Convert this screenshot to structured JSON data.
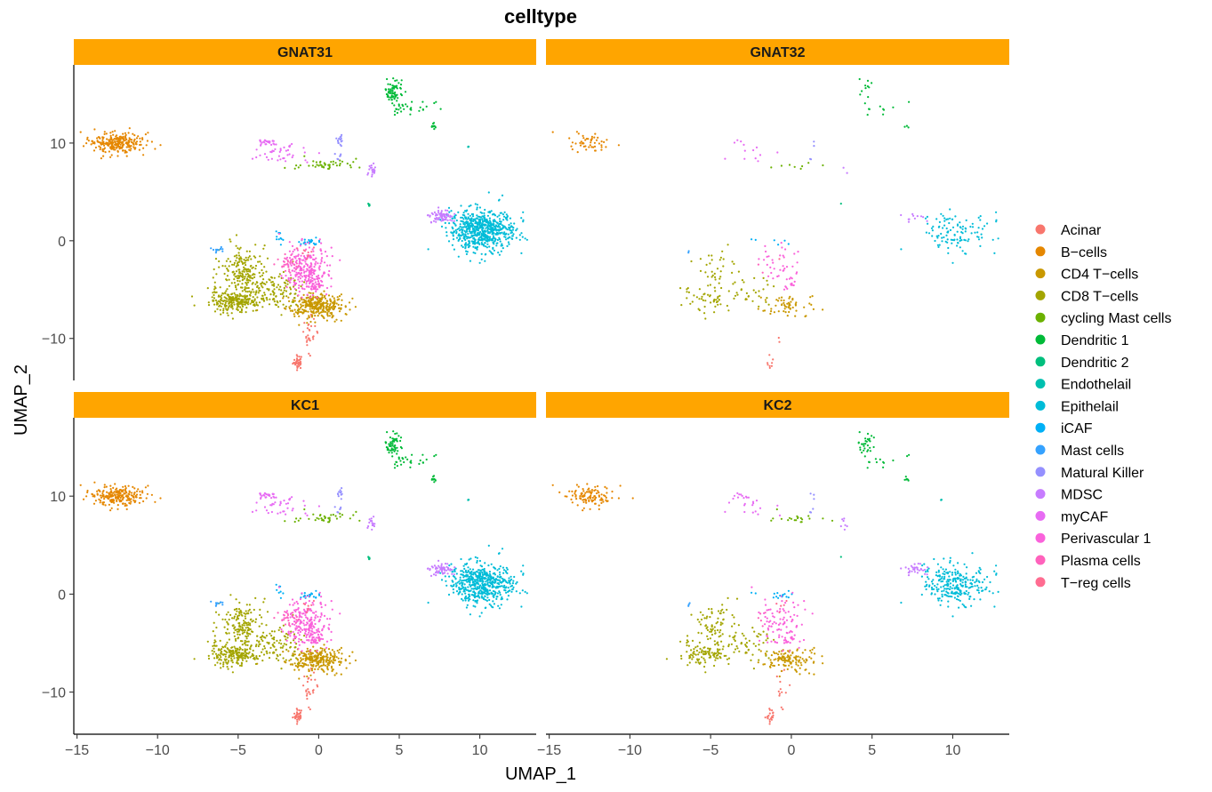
{
  "chart_data": {
    "type": "scatter",
    "title": "celltype",
    "xlabel": "UMAP_1",
    "ylabel": "UMAP_2",
    "xlim": [
      -15.2,
      13.5
    ],
    "ylim": [
      -14.3,
      18.0
    ],
    "x_ticks": [
      -15,
      -10,
      -5,
      0,
      5,
      10
    ],
    "x_tick_labels": [
      "−15",
      "−10",
      "−5",
      "0",
      "5",
      "10"
    ],
    "y_ticks": [
      -10,
      0,
      10
    ],
    "y_tick_labels": [
      "−10",
      "0",
      "10"
    ],
    "grid": false,
    "legend_position": "right",
    "facets": [
      {
        "label": "GNAT31",
        "density": 1.0
      },
      {
        "label": "GNAT32",
        "density": 0.18
      },
      {
        "label": "KC1",
        "density": 0.85
      },
      {
        "label": "KC2",
        "density": 0.4
      }
    ],
    "series": [
      {
        "name": "Acinar",
        "color": "#F8766D",
        "clusters": [
          {
            "cx": -1.3,
            "cy": -12.4,
            "sx": 0.15,
            "sy": 0.35,
            "n": 40
          },
          {
            "cx": -0.6,
            "cy": -9.5,
            "sx": 0.2,
            "sy": 1.0,
            "n": 30
          }
        ]
      },
      {
        "name": "B−cells",
        "color": "#E58700",
        "clusters": [
          {
            "cx": -12.6,
            "cy": 10.0,
            "sx": 0.85,
            "sy": 0.55,
            "n": 260
          }
        ]
      },
      {
        "name": "CD4 T−cells",
        "color": "#C99800",
        "clusters": [
          {
            "cx": -0.2,
            "cy": -6.6,
            "sx": 0.9,
            "sy": 0.6,
            "n": 330
          }
        ]
      },
      {
        "name": "CD8 T−cells",
        "color": "#A3A500",
        "clusters": [
          {
            "cx": -5.2,
            "cy": -6.2,
            "sx": 0.8,
            "sy": 0.55,
            "n": 230
          },
          {
            "cx": -4.7,
            "cy": -3.0,
            "sx": 0.7,
            "sy": 1.3,
            "n": 180
          },
          {
            "cx": -2.8,
            "cy": -5.2,
            "sx": 0.9,
            "sy": 0.9,
            "n": 130
          }
        ]
      },
      {
        "name": "cycling Mast cells",
        "color": "#6BB100",
        "clusters": [
          {
            "cx": 0.3,
            "cy": 7.8,
            "sx": 0.8,
            "sy": 0.3,
            "n": 45
          }
        ]
      },
      {
        "name": "Dendritic 1",
        "color": "#00BA38",
        "clusters": [
          {
            "cx": 4.6,
            "cy": 15.2,
            "sx": 0.25,
            "sy": 0.7,
            "n": 70
          },
          {
            "cx": 6.0,
            "cy": 13.6,
            "sx": 0.8,
            "sy": 0.35,
            "n": 30
          },
          {
            "cx": 7.2,
            "cy": 11.7,
            "sx": 0.1,
            "sy": 0.2,
            "n": 10
          }
        ]
      },
      {
        "name": "Dendritic 2",
        "color": "#00BF7D",
        "clusters": [
          {
            "cx": 3.1,
            "cy": 3.7,
            "sx": 0.05,
            "sy": 0.1,
            "n": 6
          }
        ]
      },
      {
        "name": "Endothelail",
        "color": "#00C0AF",
        "clusters": [
          {
            "cx": 9.3,
            "cy": 9.6,
            "sx": 0.05,
            "sy": 0.05,
            "n": 3
          }
        ]
      },
      {
        "name": "Epithelail",
        "color": "#00BCD8",
        "clusters": [
          {
            "cx": 10.2,
            "cy": 1.0,
            "sx": 1.0,
            "sy": 1.1,
            "n": 620
          },
          {
            "cx": 9.3,
            "cy": 2.0,
            "sx": 0.35,
            "sy": 0.3,
            "n": 30
          }
        ]
      },
      {
        "name": "iCAF",
        "color": "#00B0F6",
        "clusters": [
          {
            "cx": -0.6,
            "cy": -0.1,
            "sx": 0.3,
            "sy": 0.25,
            "n": 25
          },
          {
            "cx": -2.5,
            "cy": 0.5,
            "sx": 0.12,
            "sy": 0.35,
            "n": 12
          }
        ]
      },
      {
        "name": "Mast cells",
        "color": "#35A2FF",
        "clusters": [
          {
            "cx": -6.1,
            "cy": -0.9,
            "sx": 0.2,
            "sy": 0.15,
            "n": 12
          }
        ]
      },
      {
        "name": "Matural Killer",
        "color": "#9590FF",
        "clusters": [
          {
            "cx": 1.3,
            "cy": 10.4,
            "sx": 0.1,
            "sy": 0.45,
            "n": 15
          },
          {
            "cx": 1.2,
            "cy": 8.4,
            "sx": 0.1,
            "sy": 0.3,
            "n": 6
          }
        ]
      },
      {
        "name": "MDSC",
        "color": "#C77CFF",
        "clusters": [
          {
            "cx": 3.3,
            "cy": 7.3,
            "sx": 0.15,
            "sy": 0.35,
            "n": 20
          },
          {
            "cx": 7.6,
            "cy": 2.5,
            "sx": 0.35,
            "sy": 0.35,
            "n": 70
          }
        ]
      },
      {
        "name": "myCAF",
        "color": "#E76BF3",
        "clusters": [
          {
            "cx": -2.3,
            "cy": 9.0,
            "sx": 1.0,
            "sy": 0.55,
            "n": 40
          },
          {
            "cx": -3.2,
            "cy": 10.1,
            "sx": 0.3,
            "sy": 0.15,
            "n": 25
          }
        ]
      },
      {
        "name": "Perivascular 1",
        "color": "#FA62DB",
        "clusters": [
          {
            "cx": -0.8,
            "cy": -2.8,
            "sx": 0.7,
            "sy": 1.1,
            "n": 230
          },
          {
            "cx": -0.3,
            "cy": -4.4,
            "sx": 0.4,
            "sy": 0.6,
            "n": 60
          }
        ]
      },
      {
        "name": "Plasma cells",
        "color": "#FF62BC",
        "clusters": [
          {
            "cx": -1.8,
            "cy": -2.5,
            "sx": 0.4,
            "sy": 0.4,
            "n": 25
          }
        ]
      },
      {
        "name": "T−reg cells",
        "color": "#FF6C91",
        "clusters": [
          {
            "cx": -0.7,
            "cy": -1.0,
            "sx": 0.3,
            "sy": 0.3,
            "n": 10
          }
        ]
      }
    ]
  }
}
